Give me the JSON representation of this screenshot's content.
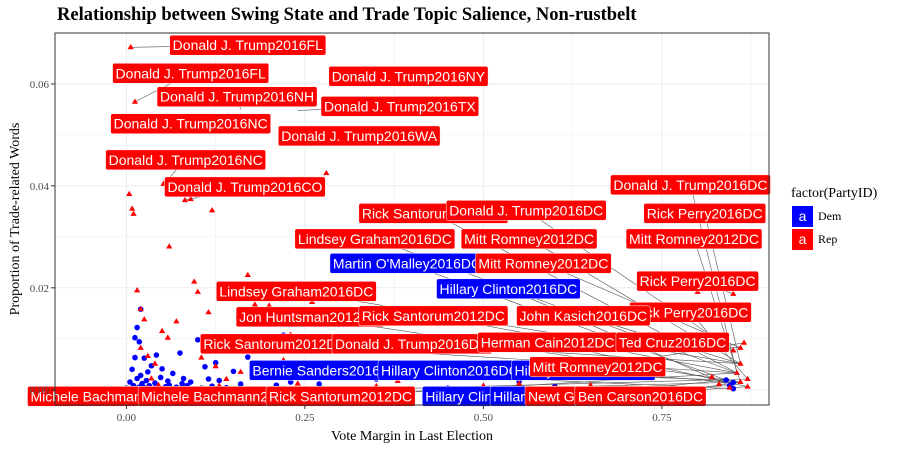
{
  "chart_data": {
    "type": "scatter",
    "title": "Relationship between Swing State and Trade Topic Salience, Non-rustbelt",
    "xlabel": "Vote Margin in Last Election",
    "ylabel": "Proportion of Trade-related Words",
    "xlim": [
      -0.1,
      0.9
    ],
    "ylim": [
      -0.003,
      0.07
    ],
    "x_ticks": [
      0.0,
      0.25,
      0.5,
      0.75
    ],
    "x_tick_labels": [
      "0.00",
      "0.25",
      "0.50",
      "0.75"
    ],
    "y_ticks": [
      0.0,
      0.02,
      0.04,
      0.06
    ],
    "y_tick_labels": [
      "0.00",
      "0.02",
      "0.04",
      "0.06"
    ],
    "grid": true,
    "legend": {
      "title": "factor(PartyID)",
      "placement": "right",
      "entries": [
        {
          "key": "a",
          "label": "Dem",
          "color": "#0000ff"
        },
        {
          "key": "a",
          "label": "Rep",
          "color": "#ff0000"
        }
      ]
    },
    "series": [
      {
        "name": "Dem",
        "color": "#0000ff",
        "shape": "circle",
        "points": [
          [
            0.0,
            0.0003
          ],
          [
            0.005,
            0.0015
          ],
          [
            0.008,
            0.004
          ],
          [
            0.01,
            0.0008
          ],
          [
            0.012,
            0.0102
          ],
          [
            0.012,
            0.0063
          ],
          [
            0.013,
            0.0001
          ],
          [
            0.015,
            0.0022
          ],
          [
            0.015,
            0.0122
          ],
          [
            0.018,
            0.0005
          ],
          [
            0.018,
            0.0094
          ],
          [
            0.02,
            0.0028
          ],
          [
            0.02,
            0.0158
          ],
          [
            0.022,
            0.0012
          ],
          [
            0.025,
            0.0062
          ],
          [
            0.025,
            0.0004
          ],
          [
            0.028,
            0.0018
          ],
          [
            0.03,
            0.0035
          ],
          [
            0.03,
            0.0001
          ],
          [
            0.032,
            0.0008
          ],
          [
            0.035,
            0.0047
          ],
          [
            0.038,
            0.0002
          ],
          [
            0.04,
            0.0013
          ],
          [
            0.042,
            0.0068
          ],
          [
            0.045,
            0.0003
          ],
          [
            0.048,
            0.0024
          ],
          [
            0.05,
            0.0041
          ],
          [
            0.055,
            0.0006
          ],
          [
            0.058,
            0.0017
          ],
          [
            0.06,
            0.0009
          ],
          [
            0.065,
            0.0032
          ],
          [
            0.07,
            0.0005
          ],
          [
            0.075,
            0.0072
          ],
          [
            0.078,
            0.0012
          ],
          [
            0.08,
            0.0022
          ],
          [
            0.085,
            0.0008
          ],
          [
            0.09,
            0.0015
          ],
          [
            0.1,
            0.0098
          ],
          [
            0.105,
            0.0003
          ],
          [
            0.11,
            0.0045
          ],
          [
            0.115,
            0.0021
          ],
          [
            0.12,
            0.0007
          ],
          [
            0.125,
            0.0053
          ],
          [
            0.13,
            0.0018
          ],
          [
            0.14,
            0.0004
          ],
          [
            0.15,
            0.0036
          ],
          [
            0.16,
            0.0011
          ],
          [
            0.17,
            0.0064
          ],
          [
            0.18,
            0.0001
          ],
          [
            0.19,
            0.0026
          ],
          [
            0.2,
            0.0038
          ],
          [
            0.21,
            0.0009
          ],
          [
            0.22,
            0.0107
          ],
          [
            0.23,
            0.0015
          ],
          [
            0.25,
            0.0042
          ],
          [
            0.27,
            0.0011
          ],
          [
            0.3,
            0.0048
          ],
          [
            0.35,
            0.0021
          ],
          [
            0.45,
            0.0003
          ],
          [
            0.55,
            0.0016
          ],
          [
            0.6,
            0.0006
          ],
          [
            0.84,
            0.0019
          ],
          [
            0.845,
            0.0008
          ],
          [
            0.85,
            0.0014
          ],
          [
            0.85,
            0.0002
          ]
        ]
      },
      {
        "name": "Rep",
        "color": "#ff0000",
        "shape": "triangle",
        "points": [
          [
            0.006,
            0.0672
          ],
          [
            0.012,
            0.0565
          ],
          [
            0.004,
            0.0384
          ],
          [
            0.008,
            0.0355
          ],
          [
            0.01,
            0.0345
          ],
          [
            0.015,
            0.0195
          ],
          [
            0.02,
            0.0158
          ],
          [
            0.02,
            0.0082
          ],
          [
            0.025,
            0.0138
          ],
          [
            0.03,
            0.0066
          ],
          [
            0.03,
            0.0004
          ],
          [
            0.035,
            0.0022
          ],
          [
            0.04,
            0.0051
          ],
          [
            0.045,
            0.0009
          ],
          [
            0.05,
            0.0115
          ],
          [
            0.052,
            0.0404
          ],
          [
            0.058,
            0.0102
          ],
          [
            0.06,
            0.0281
          ],
          [
            0.065,
            0.0382
          ],
          [
            0.07,
            0.0134
          ],
          [
            0.075,
            0.0385
          ],
          [
            0.082,
            0.0372
          ],
          [
            0.09,
            0.0374
          ],
          [
            0.095,
            0.0212
          ],
          [
            0.1,
            0.0192
          ],
          [
            0.105,
            0.0063
          ],
          [
            0.11,
            0.0085
          ],
          [
            0.115,
            0.0152
          ],
          [
            0.12,
            0.0352
          ],
          [
            0.125,
            0.0046
          ],
          [
            0.13,
            0.0008
          ],
          [
            0.14,
            0.0021
          ],
          [
            0.15,
            0.0182
          ],
          [
            0.16,
            0.0035
          ],
          [
            0.17,
            0.0225
          ],
          [
            0.18,
            0.0167
          ],
          [
            0.19,
            0.0039
          ],
          [
            0.2,
            0.0165
          ],
          [
            0.22,
            0.0058
          ],
          [
            0.23,
            0.0108
          ],
          [
            0.24,
            0.0012
          ],
          [
            0.26,
            0.0172
          ],
          [
            0.28,
            0.0425
          ],
          [
            0.29,
            0.0628
          ],
          [
            0.3,
            0.0195
          ],
          [
            0.32,
            0.0045
          ],
          [
            0.35,
            0.0007
          ],
          [
            0.38,
            0.0017
          ],
          [
            0.4,
            0.0002
          ],
          [
            0.5,
            0.0008
          ],
          [
            0.55,
            0.0012
          ],
          [
            0.6,
            0.0004
          ],
          [
            0.65,
            0.0009
          ],
          [
            0.7,
            0.0003
          ],
          [
            0.8,
            0.0192
          ],
          [
            0.82,
            0.0025
          ],
          [
            0.83,
            0.0011
          ],
          [
            0.84,
            0.0155
          ],
          [
            0.845,
            0.0004
          ],
          [
            0.85,
            0.0188
          ],
          [
            0.85,
            0.0077
          ],
          [
            0.855,
            0.0033
          ],
          [
            0.86,
            0.0015
          ],
          [
            0.86,
            0.0051
          ],
          [
            0.86,
            0.0082
          ],
          [
            0.865,
            0.0092
          ],
          [
            0.87,
            0.0021
          ],
          [
            0.87,
            0.0006
          ]
        ]
      }
    ],
    "annotations": [
      {
        "text": "Donald J. Trump2016FL",
        "party": "Rep",
        "x": 0.006,
        "y": 0.0672,
        "lx": 0.17,
        "ly": 0.0676
      },
      {
        "text": "Donald J. Trump2016FL",
        "party": "Rep",
        "x": 0.012,
        "y": 0.0565,
        "lx": 0.09,
        "ly": 0.0621
      },
      {
        "text": "Donald J. Trump2016NY",
        "party": "Rep",
        "x": 0.29,
        "y": 0.0628,
        "lx": 0.395,
        "ly": 0.0615
      },
      {
        "text": "Donald J. Trump2016NH",
        "party": "Rep",
        "x": 0.16,
        "y": 0.055,
        "lx": 0.155,
        "ly": 0.0575
      },
      {
        "text": "Donald J. Trump2016TX",
        "party": "Rep",
        "x": 0.24,
        "y": 0.0548,
        "lx": 0.383,
        "ly": 0.0556
      },
      {
        "text": "Donald J. Trump2016NC",
        "party": "Rep",
        "x": 0.12,
        "y": 0.052,
        "lx": 0.09,
        "ly": 0.0522
      },
      {
        "text": "Donald J. Trump2016WA",
        "party": "Rep",
        "x": 0.22,
        "y": 0.0515,
        "lx": 0.326,
        "ly": 0.0498
      },
      {
        "text": "Donald J. Trump2016NC",
        "party": "Rep",
        "x": 0.052,
        "y": 0.0404,
        "lx": 0.083,
        "ly": 0.0451
      },
      {
        "text": "Donald J. Trump2016CO",
        "party": "Rep",
        "x": 0.082,
        "y": 0.0372,
        "lx": 0.166,
        "ly": 0.0398
      },
      {
        "text": "Donald J. Trump2016DC",
        "party": "Rep",
        "x": 0.855,
        "y": 0.0033,
        "lx": 0.79,
        "ly": 0.0402
      },
      {
        "text": "Rick Santorum2012DC",
        "party": "Rep",
        "x": 0.855,
        "y": 0.0033,
        "lx": 0.43,
        "ly": 0.0346
      },
      {
        "text": "Donald J. Trump2016DC",
        "party": "Rep",
        "x": 0.85,
        "y": 0.0077,
        "lx": 0.56,
        "ly": 0.0352
      },
      {
        "text": "Rick Perry2016DC",
        "party": "Rep",
        "x": 0.86,
        "y": 0.0051,
        "lx": 0.81,
        "ly": 0.0346
      },
      {
        "text": "Lindsey Graham2016DC",
        "party": "Rep",
        "x": 0.855,
        "y": 0.0033,
        "lx": 0.348,
        "ly": 0.0296
      },
      {
        "text": "Mitt Romney2012DC",
        "party": "Rep",
        "x": 0.86,
        "y": 0.0051,
        "lx": 0.564,
        "ly": 0.0296
      },
      {
        "text": "Mitt Romney2012DC",
        "party": "Rep",
        "x": 0.86,
        "y": 0.0015,
        "lx": 0.795,
        "ly": 0.0296
      },
      {
        "text": "Martin O'Malley2016DC",
        "party": "Dem",
        "x": 0.85,
        "y": 0.0014,
        "lx": 0.393,
        "ly": 0.0248
      },
      {
        "text": "Mitt Romney2012DC",
        "party": "Rep",
        "x": 0.86,
        "y": 0.0082,
        "lx": 0.584,
        "ly": 0.0248
      },
      {
        "text": "Rick Perry2016DC",
        "party": "Rep",
        "x": 0.85,
        "y": 0.0188,
        "lx": 0.8,
        "ly": 0.0213
      },
      {
        "text": "Lindsey Graham2016DC",
        "party": "Rep",
        "x": 0.86,
        "y": 0.0051,
        "lx": 0.238,
        "ly": 0.0193
      },
      {
        "text": "Hillary Clinton2016DC",
        "party": "Dem",
        "x": 0.845,
        "y": 0.0008,
        "lx": 0.535,
        "ly": 0.0198
      },
      {
        "text": "Rick Perry2016DC",
        "party": "Rep",
        "x": 0.87,
        "y": 0.0021,
        "lx": 0.79,
        "ly": 0.0152
      },
      {
        "text": "Jon Huntsman2012DC",
        "party": "Rep",
        "x": 0.86,
        "y": 0.0015,
        "lx": 0.257,
        "ly": 0.0143
      },
      {
        "text": "Rick Santorum2012DC",
        "party": "Rep",
        "x": 0.855,
        "y": 0.0033,
        "lx": 0.43,
        "ly": 0.0145
      },
      {
        "text": "John Kasich2016DC",
        "party": "Rep",
        "x": 0.86,
        "y": 0.0051,
        "lx": 0.64,
        "ly": 0.0145
      },
      {
        "text": "Rick Santorum2012DC",
        "party": "Rep",
        "x": 0.855,
        "y": 0.0033,
        "lx": 0.208,
        "ly": 0.009
      },
      {
        "text": "Donald J. Trump2016DC",
        "party": "Rep",
        "x": 0.86,
        "y": 0.0051,
        "lx": 0.4,
        "ly": 0.009
      },
      {
        "text": "Herman Cain2012DC",
        "party": "Rep",
        "x": 0.87,
        "y": 0.0006,
        "lx": 0.59,
        "ly": 0.0093
      },
      {
        "text": "Ted Cruz2016DC",
        "party": "Rep",
        "x": 0.86,
        "y": 0.0082,
        "lx": 0.765,
        "ly": 0.0093
      },
      {
        "text": "Bernie Sanders2016DC",
        "party": "Dem",
        "x": 0.85,
        "y": 0.0002,
        "lx": 0.28,
        "ly": 0.0038
      },
      {
        "text": "Hillary Clinton2016DC",
        "party": "Dem",
        "x": 0.84,
        "y": 0.0019,
        "lx": 0.453,
        "ly": 0.0038
      },
      {
        "text": "Hillary Clinton2016DC",
        "party": "Dem",
        "x": 0.85,
        "y": 0.0014,
        "lx": 0.64,
        "ly": 0.0038
      },
      {
        "text": "Mitt Romney2012DC",
        "party": "Rep",
        "x": 0.865,
        "y": 0.0092,
        "lx": 0.66,
        "ly": 0.0045
      },
      {
        "text": "Michele Bachmann2012DC",
        "party": "Rep",
        "x": 0.87,
        "y": 0.0021,
        "lx": -0.015,
        "ly": -0.0013
      },
      {
        "text": "Michele Bachmann2012DC",
        "party": "Rep",
        "x": 0.86,
        "y": 0.0015,
        "lx": 0.14,
        "ly": -0.0013
      },
      {
        "text": "Rick Santorum2012DC",
        "party": "Rep",
        "x": 0.855,
        "y": 0.0033,
        "lx": 0.3,
        "ly": -0.0013
      },
      {
        "text": "Hillary Clinton2016DC",
        "party": "Dem",
        "x": 0.845,
        "y": 0.0008,
        "lx": 0.515,
        "ly": -0.0013
      },
      {
        "text": "Hillary Clinton2016DC",
        "party": "Dem",
        "x": 0.84,
        "y": 0.0019,
        "lx": 0.61,
        "ly": -0.0013
      },
      {
        "text": "Newt Gingrich2012DC",
        "party": "Rep",
        "x": 0.87,
        "y": 0.0006,
        "lx": 0.66,
        "ly": -0.0013
      },
      {
        "text": "Ben Carson2016DC",
        "party": "Rep",
        "x": 0.86,
        "y": 0.0015,
        "lx": 0.72,
        "ly": -0.0013
      }
    ]
  }
}
